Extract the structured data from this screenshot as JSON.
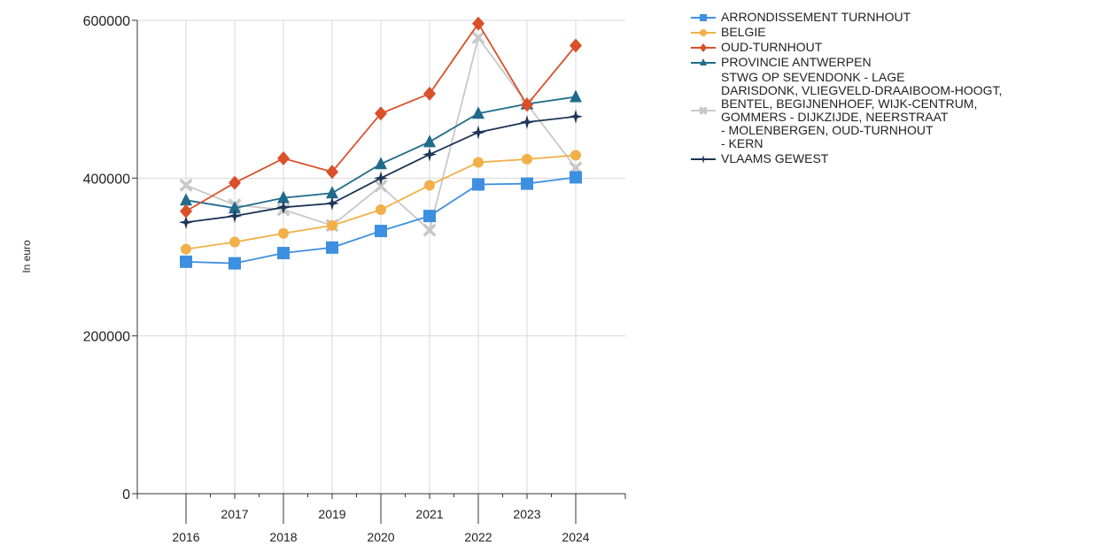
{
  "chart_data": {
    "type": "line",
    "ylabel": "In euro",
    "xlabel": "",
    "ylim": [
      0,
      600000
    ],
    "yticks": [
      0,
      200000,
      400000,
      600000
    ],
    "categories": [
      "2016",
      "2017",
      "2018",
      "2019",
      "2020",
      "2021",
      "2022",
      "2023",
      "2024"
    ],
    "grid": true,
    "legend_position": "right",
    "series": [
      {
        "name": "ARRONDISSEMENT TURNHOUT",
        "color": "#3d8fe0",
        "marker": "square",
        "values": [
          294000,
          292000,
          305000,
          312000,
          333000,
          352000,
          392000,
          393000,
          401000
        ]
      },
      {
        "name": "BELGIE",
        "color": "#f2b04a",
        "marker": "circle",
        "values": [
          310000,
          319000,
          330000,
          340000,
          360000,
          391000,
          420000,
          424000,
          429000
        ]
      },
      {
        "name": "OUD-TURNHOUT",
        "color": "#d9502a",
        "marker": "diamond",
        "values": [
          358000,
          394000,
          425000,
          408000,
          482000,
          507000,
          596000,
          493000,
          568000
        ]
      },
      {
        "name": "PROVINCIE ANTWERPEN",
        "color": "#1f6b8c",
        "marker": "triangle",
        "values": [
          372000,
          362000,
          375000,
          381000,
          418000,
          446000,
          482000,
          494000,
          503000
        ]
      },
      {
        "name": "STWG OP SEVENDONK - LAGE\nDARISDONK, VLIEGVELD-DRAAIBOOM-HOOGT,\nBENTEL, BEGIJNENHOEF, WIJK-CENTRUM,\nGOMMERS - DIJKZIJDE, NEERSTRAAT\n- MOLENBERGEN, OUD-TURNHOUT\n- KERN",
        "color": "#c8c8c8",
        "marker": "x",
        "values": [
          391000,
          366000,
          360000,
          340000,
          390000,
          334000,
          578000,
          494000,
          413000
        ]
      },
      {
        "name": "VLAAMS GEWEST",
        "color": "#1d3557",
        "marker": "star",
        "values": [
          344000,
          352000,
          363000,
          368000,
          400000,
          430000,
          458000,
          471000,
          478000
        ]
      }
    ]
  }
}
